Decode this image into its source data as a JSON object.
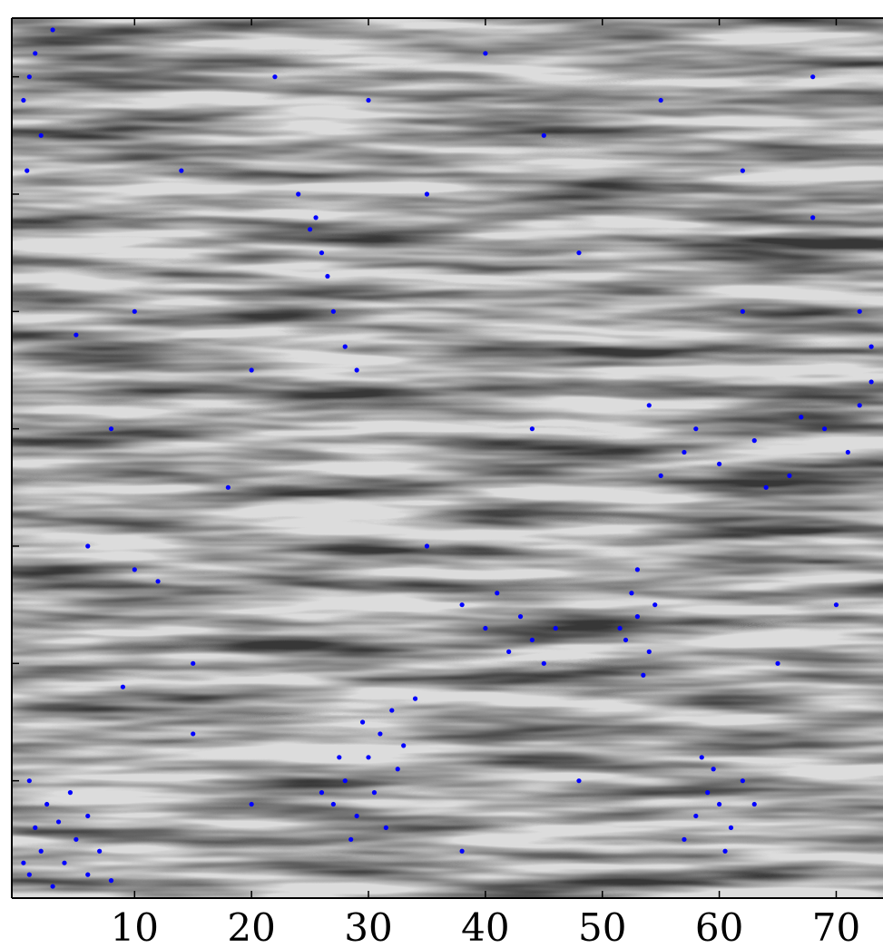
{
  "chart_data": {
    "type": "scatter",
    "color": "#0000ff",
    "xlim": [
      -0.5,
      74
    ],
    "ylim": [
      0,
      75
    ],
    "xticks": [
      10,
      20,
      30,
      40,
      50,
      60,
      70
    ],
    "yticks": [
      10,
      20,
      30,
      40,
      50,
      60,
      70
    ],
    "ytick_labels_shown": false,
    "x": [
      1,
      2,
      3,
      1.5,
      4,
      5,
      2.5,
      6,
      0.5,
      3.5,
      7,
      8,
      4.5,
      1,
      6,
      27,
      28,
      29,
      30,
      31,
      32,
      33,
      26,
      28.5,
      30.5,
      32.5,
      29.5,
      34,
      27.5,
      31.5,
      58,
      59,
      60,
      61,
      62,
      59.5,
      57,
      60.5,
      63,
      58.5,
      52,
      53,
      54,
      52.5,
      53.5,
      51.5,
      54.5,
      53,
      40,
      42,
      43,
      44,
      45,
      41,
      46,
      38,
      55,
      57,
      60,
      63,
      66,
      69,
      72,
      73,
      71,
      67,
      64,
      58,
      54,
      73,
      72,
      25,
      26,
      25.5,
      26.5,
      27,
      28,
      29,
      24,
      0.5,
      1,
      1.5,
      2,
      0.8,
      3,
      10,
      12,
      6,
      15,
      18,
      20,
      10,
      14,
      22,
      35,
      40,
      45,
      48,
      55,
      62,
      68,
      70,
      65,
      48,
      38,
      20,
      15,
      8,
      35,
      44,
      62,
      9,
      5,
      68,
      30
    ],
    "y": [
      2,
      4,
      1,
      6,
      3,
      5,
      8,
      2,
      3,
      6.5,
      4,
      1.5,
      9,
      10,
      7,
      8,
      10,
      7,
      12,
      14,
      16,
      13,
      9,
      5,
      9,
      11,
      15,
      17,
      12,
      6,
      7,
      9,
      8,
      6,
      10,
      11,
      5,
      4,
      8,
      12,
      22,
      24,
      21,
      26,
      19,
      23,
      25,
      28,
      23,
      21,
      24,
      22,
      20,
      26,
      23,
      25,
      36,
      38,
      37,
      39,
      36,
      40,
      42,
      44,
      38,
      41,
      35,
      40,
      42,
      47,
      50,
      57,
      55,
      58,
      53,
      50,
      47,
      45,
      60,
      68,
      70,
      72,
      65,
      62,
      74,
      28,
      27,
      30,
      20,
      35,
      45,
      50,
      62,
      70,
      60,
      72,
      65,
      55,
      68,
      62,
      58,
      25,
      20,
      10,
      4,
      8,
      14,
      40,
      30,
      40,
      50,
      18,
      48,
      70,
      68
    ]
  }
}
